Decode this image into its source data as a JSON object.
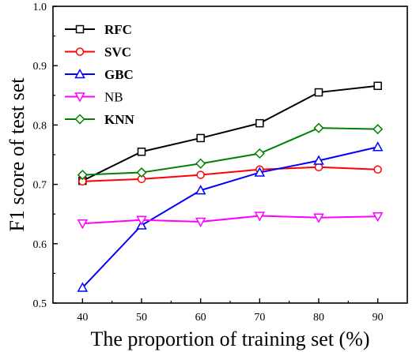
{
  "chart_data": {
    "type": "line",
    "xlabel": "The proportion of training set (%)",
    "ylabel": "F1 score of test set",
    "x": [
      40,
      50,
      60,
      70,
      80,
      90
    ],
    "xlim": [
      35,
      95
    ],
    "ylim": [
      0.5,
      1.0
    ],
    "xticks": [
      "40",
      "50",
      "60",
      "70",
      "80",
      "90"
    ],
    "yticks": [
      "0.5",
      "0.6",
      "0.7",
      "0.8",
      "0.9",
      "1.0"
    ],
    "legend_position": "top-left",
    "grid": false,
    "series": [
      {
        "name": "RFC",
        "color": "#000000",
        "marker": "square",
        "bold": true,
        "values": [
          0.706,
          0.755,
          0.778,
          0.803,
          0.855,
          0.866
        ]
      },
      {
        "name": "SVC",
        "color": "#ff0000",
        "marker": "circle",
        "bold": true,
        "values": [
          0.705,
          0.709,
          0.716,
          0.725,
          0.729,
          0.725
        ]
      },
      {
        "name": "GBC",
        "color": "#0000ff",
        "marker": "triangle-up",
        "bold": true,
        "values": [
          0.526,
          0.631,
          0.69,
          0.72,
          0.74,
          0.763
        ]
      },
      {
        "name": "NB",
        "color": "#ff00ff",
        "marker": "triangle-down",
        "bold": false,
        "values": [
          0.634,
          0.64,
          0.637,
          0.647,
          0.644,
          0.646
        ]
      },
      {
        "name": "KNN",
        "color": "#008000",
        "marker": "diamond",
        "bold": true,
        "values": [
          0.716,
          0.72,
          0.735,
          0.752,
          0.795,
          0.793
        ]
      }
    ]
  }
}
